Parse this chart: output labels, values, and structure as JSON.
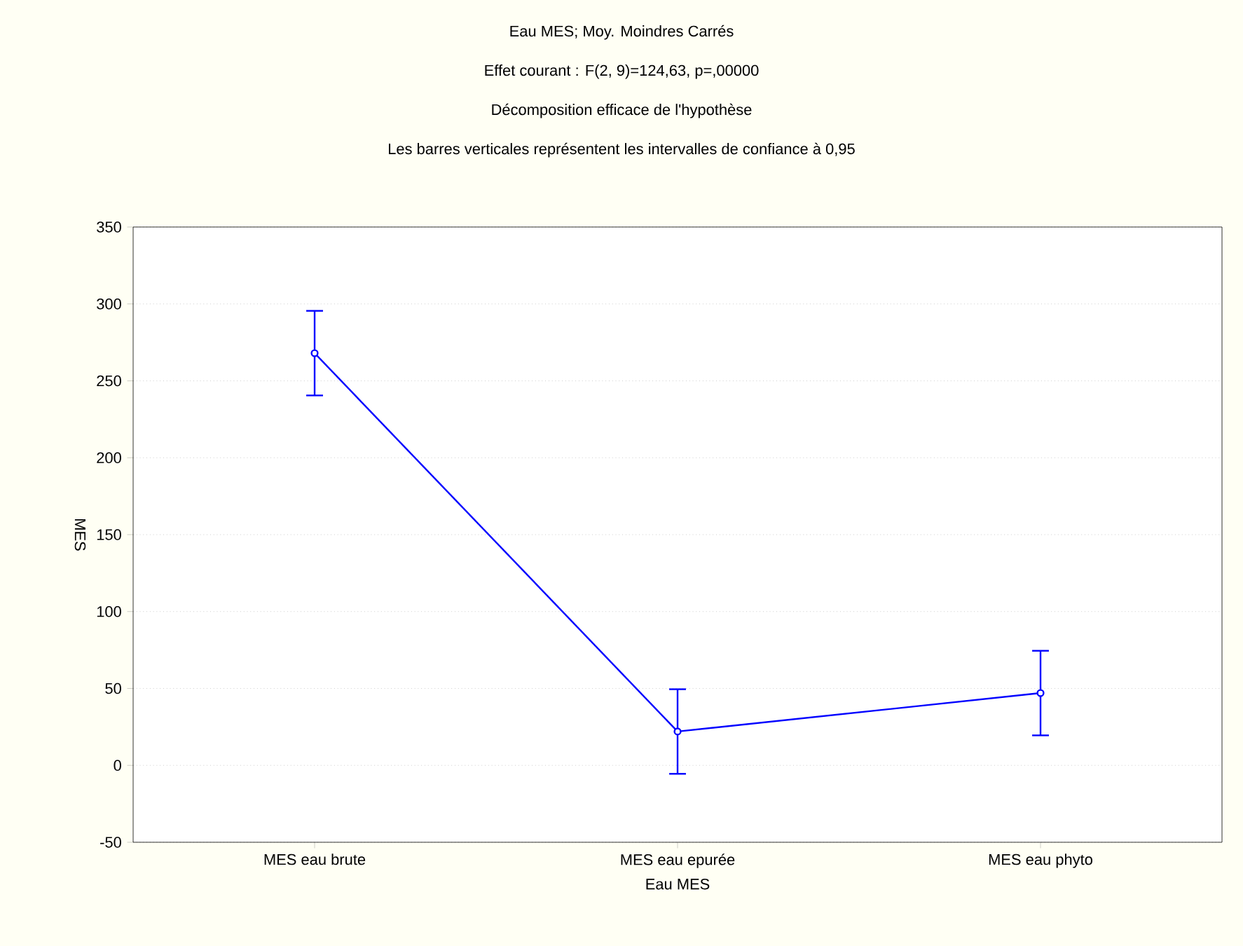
{
  "chart_data": {
    "type": "line",
    "title": "Eau MES; Moy. Moindres Carrés",
    "subtitle": "Effet courant : F(2, 9)=124,63, p=,00000",
    "annotations": [
      "Décomposition efficace de l'hypothèse",
      "Les barres verticales représentent les intervalles de confiance à 0,95"
    ],
    "xlabel": "Eau MES",
    "ylabel": "MES",
    "categories": [
      "MES eau brute",
      "MES eau epurée",
      "MES eau phyto"
    ],
    "values": [
      268,
      22,
      47
    ],
    "errors": [
      27.5,
      27.5,
      27.5
    ],
    "color": "#0000ff",
    "ylim": [
      -50,
      350
    ],
    "yticks": [
      -50,
      0,
      50,
      100,
      150,
      200,
      250,
      300,
      350
    ],
    "grid": "y",
    "marker": "circle",
    "line_style": "solid"
  }
}
